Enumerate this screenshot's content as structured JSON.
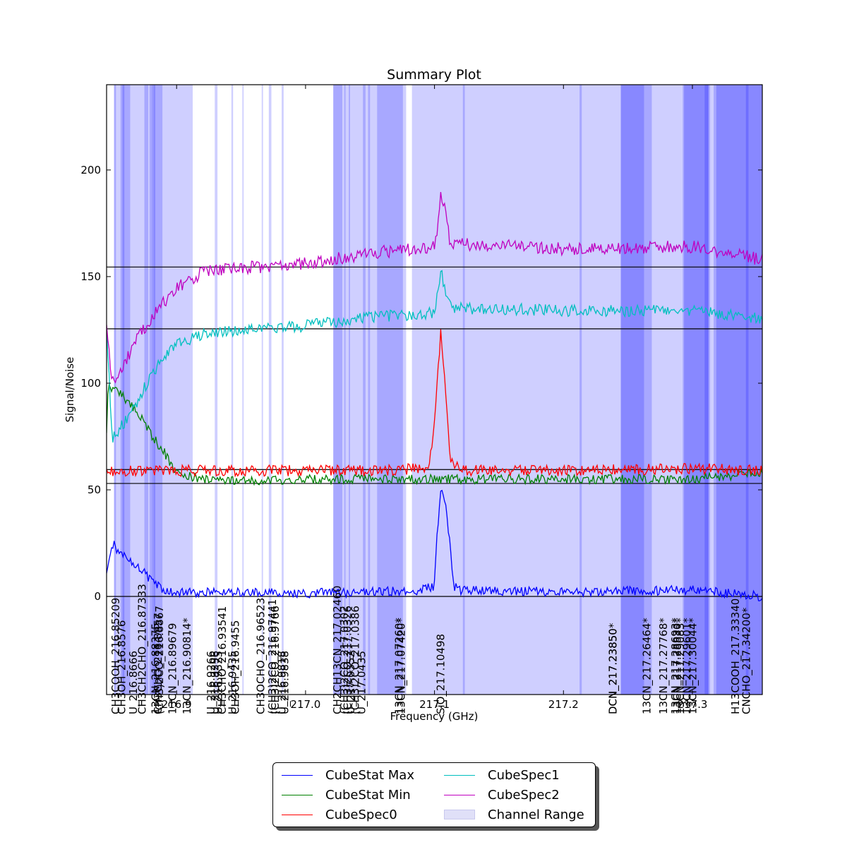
{
  "chart_data": {
    "type": "line",
    "title": "Summary Plot",
    "xlabel": "Frequency (GHz)",
    "ylabel": "Signal/Noise",
    "xlim": [
      216.8457,
      217.3542
    ],
    "ylim": [
      -46,
      240
    ],
    "xticks": [
      {
        "value": 216.9,
        "label": "216.9"
      },
      {
        "value": 217.0,
        "label": "217.0"
      },
      {
        "value": 217.1,
        "label": "217.1"
      },
      {
        "value": 217.2,
        "label": "217.2"
      },
      {
        "value": 217.3,
        "label": "217.3"
      }
    ],
    "yticks": [
      {
        "value": 0,
        "label": "0"
      },
      {
        "value": 50,
        "label": "50"
      },
      {
        "value": 100,
        "label": "100"
      },
      {
        "value": 150,
        "label": "150"
      },
      {
        "value": 200,
        "label": "200"
      }
    ],
    "series": [
      {
        "name": "CubeStat Max",
        "color": "#0000ff",
        "offset": 0,
        "x": [
          216.8457,
          216.85,
          216.86,
          216.87,
          216.88,
          216.89,
          216.9,
          216.95,
          217.0,
          217.05,
          217.09,
          217.1,
          217.102,
          217.105,
          217.108,
          217.112,
          217.115,
          217.12,
          217.2,
          217.3,
          217.3542
        ],
        "y": [
          11,
          25,
          18,
          14,
          8,
          3,
          2,
          2,
          1.5,
          2,
          3,
          5,
          30,
          51,
          45,
          25,
          5,
          3,
          2,
          3,
          0
        ]
      },
      {
        "name": "CubeStat Min",
        "color": "#008000",
        "offset": 0,
        "x": [
          216.8457,
          216.847,
          216.86,
          216.87,
          216.88,
          216.89,
          216.9,
          216.92,
          216.95,
          217.0,
          217.05,
          217.1,
          217.15,
          217.2,
          217.25,
          217.3,
          217.3542
        ],
        "y": [
          75,
          99,
          93,
          86,
          76,
          68,
          58,
          55,
          54,
          55,
          55,
          55,
          55,
          55,
          55,
          55,
          58
        ]
      },
      {
        "name": "CubeSpec0",
        "color": "#ff0000",
        "offset": 0,
        "x": [
          216.8457,
          216.95,
          217.05,
          217.095,
          217.098,
          217.102,
          217.105,
          217.108,
          217.112,
          217.12,
          217.2,
          217.3,
          217.3542
        ],
        "y": [
          59,
          59,
          59,
          60,
          70,
          100,
          124,
          100,
          65,
          59,
          59,
          60,
          59
        ]
      },
      {
        "name": "CubeSpec1",
        "color": "#00bfbf",
        "offset": 0,
        "x": [
          216.8457,
          216.85,
          216.86,
          216.87,
          216.88,
          216.89,
          216.9,
          216.92,
          216.95,
          217.0,
          217.05,
          217.1,
          217.102,
          217.105,
          217.108,
          217.112,
          217.12,
          217.15,
          217.2,
          217.3,
          217.3542
        ],
        "y": [
          128,
          74,
          82,
          92,
          104,
          112,
          118,
          123,
          125,
          127,
          131,
          133,
          140,
          152,
          145,
          136,
          135,
          135,
          134,
          134,
          130
        ]
      },
      {
        "name": "CubeSpec2",
        "color": "#bf00bf",
        "offset": 0,
        "x": [
          216.8457,
          216.85,
          216.86,
          216.87,
          216.88,
          216.89,
          216.9,
          216.92,
          216.95,
          217.0,
          217.05,
          217.1,
          217.102,
          217.105,
          217.108,
          217.112,
          217.12,
          217.15,
          217.2,
          217.3,
          217.3542
        ],
        "y": [
          128,
          100,
          110,
          122,
          130,
          138,
          145,
          152,
          154,
          156,
          161,
          164,
          172,
          190,
          182,
          166,
          165,
          165,
          163,
          164,
          158
        ]
      }
    ],
    "hlines": [
      0,
      53,
      59.5,
      125.5,
      154.5
    ],
    "channel_ranges": [
      [
        216.8515,
        216.9125
      ],
      [
        216.8515,
        216.853
      ],
      [
        216.8565,
        216.8595
      ],
      [
        216.858,
        216.864
      ],
      [
        216.875,
        216.878
      ],
      [
        216.879,
        216.8815
      ],
      [
        216.881,
        216.889
      ],
      [
        216.882,
        216.8835
      ],
      [
        216.9296,
        216.9317
      ],
      [
        216.9425,
        216.9438
      ],
      [
        216.951,
        216.952
      ],
      [
        216.966,
        216.967
      ],
      [
        216.9715,
        216.9735
      ],
      [
        216.9815,
        216.983
      ],
      [
        217.0215,
        217.078
      ],
      [
        217.0215,
        217.0285
      ],
      [
        217.03,
        217.031
      ],
      [
        217.0335,
        217.0345
      ],
      [
        217.0445,
        217.0465
      ],
      [
        217.0485,
        217.05
      ],
      [
        217.0825,
        217.3542
      ],
      [
        217.0555,
        217.0755
      ],
      [
        217.122,
        217.1235
      ],
      [
        217.2125,
        217.2142
      ],
      [
        217.2445,
        217.2625
      ],
      [
        217.2445,
        217.2655
      ],
      [
        217.2655,
        217.2685
      ],
      [
        217.2925,
        217.3137
      ],
      [
        217.2935,
        217.3125
      ],
      [
        217.3165,
        217.3542
      ],
      [
        217.3185,
        217.3542
      ],
      [
        217.3095,
        217.3125
      ],
      [
        217.3415,
        217.3435
      ]
    ],
    "line_labels": [
      {
        "x": 216.8529,
        "text": "CH3COOH_216.85209"
      },
      {
        "x": 216.8576,
        "text": "CH3OH_216.8576"
      },
      {
        "x": 216.8666,
        "text": "U_216.8666"
      },
      {
        "x": 216.8733,
        "text": "CH3CH2CHO_216.87333"
      },
      {
        "x": 216.8837,
        "text": "13CN_216.88375"
      },
      {
        "x": 216.8857,
        "text": "CH3CHO_216.8857"
      },
      {
        "x": 216.8867,
        "text": "(CH3)2CO_216.8867"
      },
      {
        "x": 216.8969,
        "text": "13CN_216.89679"
      },
      {
        "x": 216.9081,
        "text": "13CN_216.90814*"
      },
      {
        "x": 216.9266,
        "text": "U_216.9266"
      },
      {
        "x": 216.9296,
        "text": "U_216.9296"
      },
      {
        "x": 216.9325,
        "text": "U_216.9325"
      },
      {
        "x": 216.9354,
        "text": "CH3CHO_216.93541"
      },
      {
        "x": 216.9435,
        "text": "U_216.9435"
      },
      {
        "x": 216.9455,
        "text": "CH3OH_216.9455"
      },
      {
        "x": 216.9652,
        "text": "CH3OCHO_216.96523"
      },
      {
        "x": 216.9744,
        "text": "(CH3)2CO_216.97441"
      },
      {
        "x": 216.9766,
        "text": "(CH3)2CO_216.9766"
      },
      {
        "x": 216.9818,
        "text": "U_216.9818"
      },
      {
        "x": 216.9838,
        "text": "U_216.9838"
      },
      {
        "x": 217.0246,
        "text": "CH2CH13CN_217.02460"
      },
      {
        "x": 217.0302,
        "text": "(CH3)2CO_217.0302"
      },
      {
        "x": 217.0326,
        "text": "(CH3)2CO_217.0326"
      },
      {
        "x": 217.0352,
        "text": "U_217.0352"
      },
      {
        "x": 217.0386,
        "text": "(CH3)2CO_217.0386"
      },
      {
        "x": 217.0435,
        "text": "U_217.0435"
      },
      {
        "x": 217.0742,
        "text": "13CN_217.07420*"
      },
      {
        "x": 217.0726,
        "text": "13CN_217.07260*"
      },
      {
        "x": 217.105,
        "text": "SiO_217.10498"
      },
      {
        "x": 217.2385,
        "text": "DCN_217.23850*"
      },
      {
        "x": 217.2385,
        "text": "DCN_217.23850"
      },
      {
        "x": 217.2646,
        "text": "13CN_217.26464*"
      },
      {
        "x": 217.2777,
        "text": "13CN_217.27768*"
      },
      {
        "x": 217.2869,
        "text": "13CN_217.28693*"
      },
      {
        "x": 217.2883,
        "text": "13CN_217.28830*"
      },
      {
        "x": 217.2908,
        "text": "13CN_217.29083*"
      },
      {
        "x": 217.296,
        "text": "13CN_217.29601*"
      },
      {
        "x": 217.3004,
        "text": "13CN_217.30044*"
      },
      {
        "x": 217.3334,
        "text": "H13COOH_217.33340"
      },
      {
        "x": 217.342,
        "text": "CNCHO_217.34200*"
      }
    ],
    "legend": {
      "placement": "below",
      "entries": [
        {
          "label": "CubeStat Max",
          "color": "#0000ff",
          "kind": "line"
        },
        {
          "label": "CubeStat Min",
          "color": "#008000",
          "kind": "line"
        },
        {
          "label": "CubeSpec0",
          "color": "#ff0000",
          "kind": "line"
        },
        {
          "label": "CubeSpec1",
          "color": "#00bfbf",
          "kind": "line"
        },
        {
          "label": "CubeSpec2",
          "color": "#bf00bf",
          "kind": "line"
        },
        {
          "label": "Channel Range",
          "color": "#e0e0f8",
          "kind": "patch"
        }
      ]
    },
    "grid": false
  }
}
